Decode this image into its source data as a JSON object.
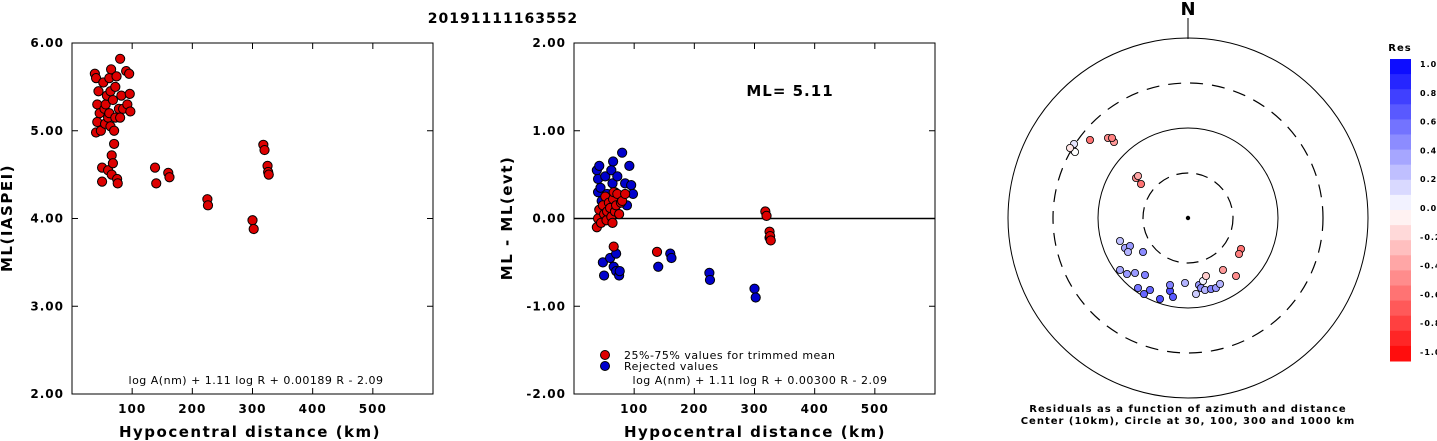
{
  "title": "20191111163552",
  "colors": {
    "red": "#dd0000",
    "blue": "#0000cc",
    "black": "#000000"
  },
  "chart_data": [
    {
      "type": "scatter",
      "xlabel": "Hypocentral distance (km)",
      "ylabel": "ML(IASPEI)",
      "xlim": [
        0,
        600
      ],
      "ylim": [
        2.0,
        6.0
      ],
      "x_ticks": [
        {
          "v": 100,
          "label": "100"
        },
        {
          "v": 200,
          "label": "200"
        },
        {
          "v": 300,
          "label": "300"
        },
        {
          "v": 400,
          "label": "400"
        },
        {
          "v": 500,
          "label": "500"
        }
      ],
      "y_ticks": [
        {
          "v": 2,
          "label": "2.00"
        },
        {
          "v": 3,
          "label": "3.00"
        },
        {
          "v": 4,
          "label": "4.00"
        },
        {
          "v": 5,
          "label": "5.00"
        },
        {
          "v": 6,
          "label": "6.00"
        }
      ],
      "formula": "log A(nm) + 1.11 log R + 0.00189 R - 2.09",
      "series": [
        {
          "color": "#dd0000",
          "points": [
            [
              38,
              5.65
            ],
            [
              40,
              5.6
            ],
            [
              42,
              5.3
            ],
            [
              42,
              5.1
            ],
            [
              40,
              4.98
            ],
            [
              44,
              5.45
            ],
            [
              46,
              5.2
            ],
            [
              48,
              5.0
            ],
            [
              50,
              4.58
            ],
            [
              50,
              4.42
            ],
            [
              52,
              5.55
            ],
            [
              54,
              5.25
            ],
            [
              55,
              5.08
            ],
            [
              56,
              5.3
            ],
            [
              58,
              5.4
            ],
            [
              60,
              5.15
            ],
            [
              60,
              4.55
            ],
            [
              62,
              5.6
            ],
            [
              62,
              5.2
            ],
            [
              64,
              5.45
            ],
            [
              64,
              5.05
            ],
            [
              65,
              5.7
            ],
            [
              66,
              4.5
            ],
            [
              66,
              4.72
            ],
            [
              68,
              5.35
            ],
            [
              68,
              4.63
            ],
            [
              70,
              5.0
            ],
            [
              70,
              4.85
            ],
            [
              72,
              5.5
            ],
            [
              72,
              5.15
            ],
            [
              74,
              5.62
            ],
            [
              75,
              4.45
            ],
            [
              76,
              4.4
            ],
            [
              78,
              5.25
            ],
            [
              80,
              5.82
            ],
            [
              80,
              5.15
            ],
            [
              82,
              5.4
            ],
            [
              85,
              5.25
            ],
            [
              90,
              5.68
            ],
            [
              92,
              5.3
            ],
            [
              95,
              5.65
            ],
            [
              96,
              5.42
            ],
            [
              97,
              5.22
            ],
            [
              138,
              4.58
            ],
            [
              140,
              4.4
            ],
            [
              160,
              4.52
            ],
            [
              162,
              4.47
            ],
            [
              225,
              4.22
            ],
            [
              226,
              4.15
            ],
            [
              300,
              3.98
            ],
            [
              302,
              3.88
            ],
            [
              318,
              4.84
            ],
            [
              320,
              4.78
            ],
            [
              325,
              4.6
            ],
            [
              326,
              4.53
            ],
            [
              327,
              4.5
            ]
          ]
        }
      ]
    },
    {
      "type": "scatter",
      "xlabel": "Hypocentral distance (km)",
      "ylabel": "ML - ML(evt)",
      "xlim": [
        0,
        600
      ],
      "ylim": [
        -2.0,
        2.0
      ],
      "x_ticks": [
        {
          "v": 100,
          "label": "100"
        },
        {
          "v": 200,
          "label": "200"
        },
        {
          "v": 300,
          "label": "300"
        },
        {
          "v": 400,
          "label": "400"
        },
        {
          "v": 500,
          "label": "500"
        }
      ],
      "y_ticks": [
        {
          "v": -2,
          "label": "-2.00"
        },
        {
          "v": -1,
          "label": "-1.00"
        },
        {
          "v": 0,
          "label": "0.00"
        },
        {
          "v": 1,
          "label": "1.00"
        },
        {
          "v": 2,
          "label": "2.00"
        }
      ],
      "ml_label": "ML= 5.11",
      "zero_line": 0,
      "formula": "log A(nm) + 1.11 log R + 0.00300 R - 2.09",
      "legend": [
        {
          "color": "#dd0000",
          "label": "25%-75% values for trimmed mean"
        },
        {
          "color": "#0000cc",
          "label": "Rejected values"
        }
      ],
      "series": [
        {
          "color": "#0000cc",
          "points": [
            [
              38,
              0.55
            ],
            [
              40,
              0.45
            ],
            [
              40,
              0.3
            ],
            [
              42,
              0.6
            ],
            [
              44,
              0.35
            ],
            [
              46,
              0.2
            ],
            [
              48,
              -0.5
            ],
            [
              50,
              -0.65
            ],
            [
              52,
              0.48
            ],
            [
              55,
              0.28
            ],
            [
              58,
              0.15
            ],
            [
              60,
              -0.45
            ],
            [
              62,
              0.55
            ],
            [
              64,
              0.4
            ],
            [
              65,
              0.65
            ],
            [
              66,
              -0.55
            ],
            [
              68,
              0.3
            ],
            [
              70,
              -0.4
            ],
            [
              70,
              -0.6
            ],
            [
              72,
              0.48
            ],
            [
              74,
              0.2
            ],
            [
              75,
              -0.65
            ],
            [
              76,
              -0.6
            ],
            [
              80,
              0.75
            ],
            [
              85,
              0.4
            ],
            [
              88,
              0.15
            ],
            [
              92,
              0.6
            ],
            [
              95,
              0.38
            ],
            [
              98,
              0.28
            ],
            [
              140,
              -0.55
            ],
            [
              160,
              -0.4
            ],
            [
              162,
              -0.45
            ],
            [
              225,
              -0.62
            ],
            [
              226,
              -0.7
            ],
            [
              300,
              -0.8
            ],
            [
              302,
              -0.9
            ],
            [
              325,
              -0.22
            ]
          ]
        },
        {
          "color": "#dd0000",
          "points": [
            [
              38,
              -0.1
            ],
            [
              40,
              0.0
            ],
            [
              42,
              0.1
            ],
            [
              45,
              -0.05
            ],
            [
              48,
              0.15
            ],
            [
              50,
              0.05
            ],
            [
              52,
              0.25
            ],
            [
              54,
              -0.02
            ],
            [
              55,
              0.08
            ],
            [
              58,
              0.18
            ],
            [
              60,
              0.12
            ],
            [
              62,
              0.02
            ],
            [
              64,
              -0.05
            ],
            [
              65,
              0.22
            ],
            [
              66,
              0.3
            ],
            [
              66,
              -0.32
            ],
            [
              68,
              0.08
            ],
            [
              70,
              0.15
            ],
            [
              72,
              0.28
            ],
            [
              75,
              0.05
            ],
            [
              78,
              0.18
            ],
            [
              80,
              0.2
            ],
            [
              85,
              0.28
            ],
            [
              138,
              -0.38
            ],
            [
              318,
              0.08
            ],
            [
              320,
              0.03
            ],
            [
              325,
              -0.15
            ],
            [
              326,
              -0.2
            ],
            [
              327,
              -0.25
            ]
          ]
        }
      ]
    }
  ],
  "polar": {
    "north_label": "N",
    "caption_line1": "Residuals as a function of azimuth and distance",
    "caption_line2": "Center (10km), Circle at 30, 100, 300 and 1000 km",
    "points": [
      {
        "dx": -115,
        "dy": -68,
        "r": 0.05
      },
      {
        "dx": -114,
        "dy": -74,
        "r": 0.1
      },
      {
        "dx": -113,
        "dy": -66,
        "r": 0.0
      },
      {
        "dx": -118,
        "dy": -70,
        "r": -0.1
      },
      {
        "dx": -98,
        "dy": -78,
        "r": -0.55
      },
      {
        "dx": -80,
        "dy": -80,
        "r": -0.45
      },
      {
        "dx": -74,
        "dy": -76,
        "r": -0.4
      },
      {
        "dx": -76,
        "dy": -80,
        "r": -0.5
      },
      {
        "dx": -52,
        "dy": -40,
        "r": -0.45
      },
      {
        "dx": -47,
        "dy": -34,
        "r": -0.55
      },
      {
        "dx": -50,
        "dy": -42,
        "r": -0.35
      },
      {
        "dx": -68,
        "dy": 23,
        "r": 0.25
      },
      {
        "dx": -63,
        "dy": 30,
        "r": 0.35
      },
      {
        "dx": -58,
        "dy": 28,
        "r": 0.4
      },
      {
        "dx": -60,
        "dy": 34,
        "r": 0.3
      },
      {
        "dx": -45,
        "dy": 34,
        "r": 0.45
      },
      {
        "dx": -68,
        "dy": 52,
        "r": 0.35
      },
      {
        "dx": -61,
        "dy": 56,
        "r": 0.4
      },
      {
        "dx": -53,
        "dy": 55,
        "r": 0.4
      },
      {
        "dx": -43,
        "dy": 57,
        "r": 0.5
      },
      {
        "dx": -50,
        "dy": 70,
        "r": 0.55
      },
      {
        "dx": -44,
        "dy": 76,
        "r": 0.6
      },
      {
        "dx": -38,
        "dy": 72,
        "r": 0.6
      },
      {
        "dx": -28,
        "dy": 81,
        "r": 0.7
      },
      {
        "dx": -18,
        "dy": 73,
        "r": 0.7
      },
      {
        "dx": -15,
        "dy": 79,
        "r": 0.65
      },
      {
        "dx": -18,
        "dy": 67,
        "r": 0.5
      },
      {
        "dx": -3,
        "dy": 65,
        "r": 0.3
      },
      {
        "dx": 8,
        "dy": 76,
        "r": 0.2
      },
      {
        "dx": 11,
        "dy": 67,
        "r": 0.4
      },
      {
        "dx": 13,
        "dy": 70,
        "r": 0.45
      },
      {
        "dx": 17,
        "dy": 72,
        "r": 0.3
      },
      {
        "dx": 23,
        "dy": 71,
        "r": 0.5
      },
      {
        "dx": 28,
        "dy": 70,
        "r": 0.4
      },
      {
        "dx": 32,
        "dy": 66,
        "r": 0.3
      },
      {
        "dx": 15,
        "dy": 63,
        "r": 0.05
      },
      {
        "dx": 35,
        "dy": 52,
        "r": -0.4
      },
      {
        "dx": 18,
        "dy": 58,
        "r": -0.2
      },
      {
        "dx": 53,
        "dy": 31,
        "r": -0.55
      },
      {
        "dx": 51,
        "dy": 36,
        "r": -0.5
      },
      {
        "dx": 48,
        "dy": 58,
        "r": -0.45
      }
    ]
  },
  "colorbar": {
    "title": "Res",
    "labels": [
      "1.0",
      "0.8",
      "0.6",
      "0.4",
      "0.2",
      "0.0",
      "-0.2",
      "-0.4",
      "-0.6",
      "-0.8",
      "-1.0"
    ]
  }
}
